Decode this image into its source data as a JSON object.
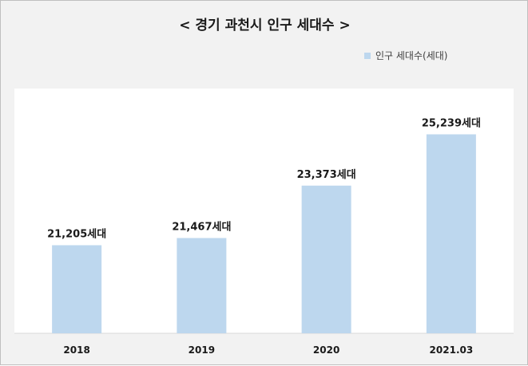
{
  "chart_data": {
    "type": "bar",
    "title": "< 경기 과천시 인구 세대수 >",
    "categories": [
      "2018",
      "2019",
      "2020",
      "2021.03"
    ],
    "series": [
      {
        "name": "인구 세대수(세대)",
        "values": [
          21205,
          21467,
          23373,
          25239
        ]
      }
    ],
    "data_labels": [
      "21,205세대",
      "21,467세대",
      "23,373세대",
      "25,239세대"
    ],
    "ylim": [
      18000,
      26500
    ],
    "grid": false,
    "legend_position": "top-right",
    "colors": {
      "bar": "#bdd7ee",
      "background": "#f2f2f2",
      "plot_background": "#ffffff"
    }
  }
}
